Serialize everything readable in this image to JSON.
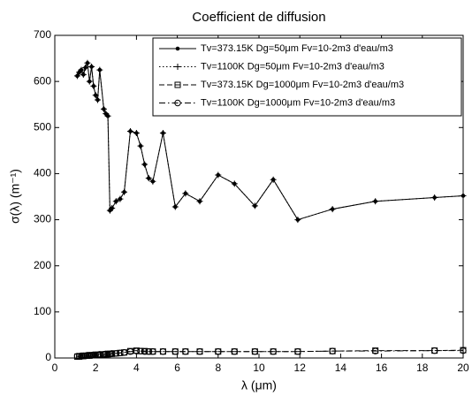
{
  "chart_data": {
    "type": "line",
    "title": "Coefficient de diffusion",
    "x_label": "λ (μm)",
    "y_label": "σ(λ) (m⁻¹)",
    "xlim": [
      0,
      20
    ],
    "ylim": [
      0,
      700
    ],
    "xticks": [
      0,
      2,
      4,
      6,
      8,
      10,
      12,
      14,
      16,
      18,
      20
    ],
    "yticks": [
      0,
      100,
      200,
      300,
      400,
      500,
      600,
      700
    ],
    "grid": false,
    "legend": "upper right",
    "x": [
      1.1,
      1.2,
      1.3,
      1.4,
      1.5,
      1.6,
      1.7,
      1.8,
      1.9,
      2.0,
      2.1,
      2.2,
      2.4,
      2.5,
      2.6,
      2.7,
      2.8,
      3.0,
      3.2,
      3.4,
      3.7,
      4.0,
      4.2,
      4.4,
      4.6,
      4.8,
      5.3,
      5.9,
      6.4,
      7.1,
      8.0,
      8.8,
      9.8,
      10.7,
      11.9,
      13.6,
      15.7,
      18.6,
      20
    ],
    "series": [
      {
        "name": "Tv=373.15K Dg=50μm Fv=10-2m3 d'eau/m3",
        "color": "#000000",
        "line": "solid",
        "marker": "point",
        "values": [
          612,
          620,
          625,
          615,
          630,
          640,
          600,
          632,
          590,
          570,
          560,
          625,
          540,
          530,
          525,
          320,
          325,
          340,
          345,
          360,
          492,
          488,
          460,
          420,
          390,
          383,
          488,
          328,
          357,
          340,
          397,
          378,
          330,
          387,
          300,
          323,
          340,
          348,
          352
        ]
      },
      {
        "name": "Tv=1100K Dg=50μm Fv=10-2m3 d'eau/m3",
        "color": "#000000",
        "line": "dotted",
        "marker": "plus",
        "values": [
          612,
          620,
          625,
          615,
          630,
          640,
          600,
          632,
          590,
          570,
          560,
          625,
          540,
          530,
          525,
          320,
          325,
          340,
          345,
          360,
          492,
          488,
          460,
          420,
          390,
          383,
          488,
          328,
          357,
          340,
          397,
          378,
          330,
          387,
          300,
          323,
          340,
          348,
          352
        ]
      },
      {
        "name": "Tv=373.15K Dg=1000μm Fv=10-2m3 d'eau/m3",
        "color": "#000000",
        "line": "dashed",
        "marker": "square",
        "values": [
          3,
          3,
          4,
          4,
          5,
          5,
          5,
          6,
          6,
          6,
          7,
          7,
          8,
          8,
          8,
          9,
          9,
          10,
          11,
          12,
          15,
          16,
          15,
          15,
          14,
          14,
          14,
          14,
          14,
          14,
          14,
          14,
          14,
          14,
          14,
          15,
          16,
          16,
          17
        ]
      },
      {
        "name": "Tv=1100K Dg=1000μm Fv=10-2m3 d'eau/m3",
        "color": "#000000",
        "line": "dashdot",
        "marker": "circle",
        "values": [
          4,
          4,
          5,
          5,
          5,
          6,
          6,
          6,
          7,
          7,
          7,
          8,
          8,
          9,
          9,
          9,
          10,
          10,
          11,
          12,
          14,
          15,
          15,
          14,
          14,
          14,
          14,
          14,
          14,
          14,
          14,
          14,
          14,
          14,
          14,
          15,
          15,
          16,
          16
        ]
      }
    ]
  }
}
